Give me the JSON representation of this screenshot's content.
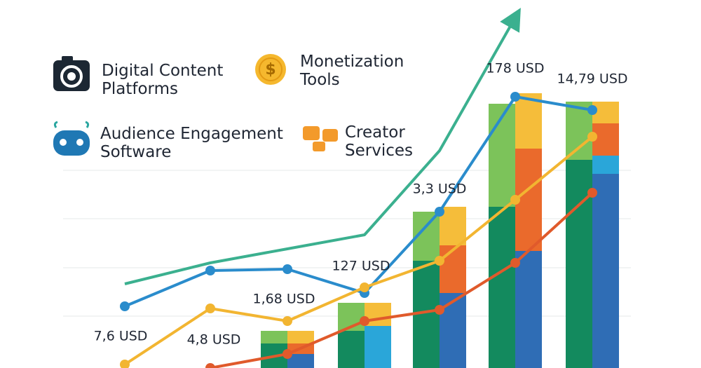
{
  "chart_data": {
    "type": "bar",
    "categories": [
      null,
      null,
      null,
      null,
      null,
      null,
      null
    ],
    "ylim": [
      0,
      100
    ],
    "legend": [
      {
        "label": "Digital Content Platforms",
        "color": "#1c2733"
      },
      {
        "label": "Monetization Tools",
        "color": "#f5b82e"
      },
      {
        "label": "Audience Engagement Software",
        "color": "#1f78b4"
      },
      {
        "label": "Creator Services",
        "color": "#f39a2b"
      }
    ],
    "bars": [
      {
        "side": "left",
        "color": "#138a5e",
        "values": [
          null,
          null,
          7,
          10.6,
          30.6,
          46,
          59.4
        ]
      },
      {
        "side": "left",
        "color": "#7cc35a",
        "values": [
          null,
          null,
          3.6,
          8,
          14,
          29.4,
          16.6
        ]
      },
      {
        "side": "right",
        "color": "#2f6db5",
        "values": [
          null,
          null,
          4,
          null,
          21.4,
          33.4,
          55.4
        ]
      },
      {
        "side": "right",
        "color": "#2aa6d9",
        "values": [
          null,
          null,
          null,
          12,
          null,
          null,
          5.2
        ]
      },
      {
        "side": "right",
        "color": "#ea6a2c",
        "values": [
          null,
          null,
          3,
          null,
          13.6,
          29.2,
          9.2
        ]
      },
      {
        "side": "right",
        "color": "#f5bd3a",
        "values": [
          null,
          null,
          3.6,
          6.6,
          11,
          15.8,
          6.2
        ]
      }
    ],
    "lines": [
      {
        "color": "#3bb08f",
        "markers": false,
        "arrow": true,
        "values": [
          24,
          30,
          34,
          38,
          62,
          100,
          null
        ]
      },
      {
        "color": "#2a8ccc",
        "markers": true,
        "arrow": false,
        "values": [
          17.6,
          27.8,
          28.2,
          21.4,
          44.6,
          77.4,
          73.6
        ]
      },
      {
        "color": "#f2b531",
        "markers": true,
        "arrow": false,
        "values": [
          1,
          17,
          13.4,
          23,
          30.6,
          48,
          66
        ]
      },
      {
        "color": "#e05a2b",
        "markers": true,
        "arrow": false,
        "values": [
          null,
          0,
          4,
          13.4,
          16.6,
          30,
          50
        ]
      }
    ],
    "annotations": [
      "7,6 USD",
      "4,8 USD",
      "1,68 USD",
      "127 USD",
      "3,3 USD",
      "178 USD",
      "14,79 USD"
    ]
  }
}
